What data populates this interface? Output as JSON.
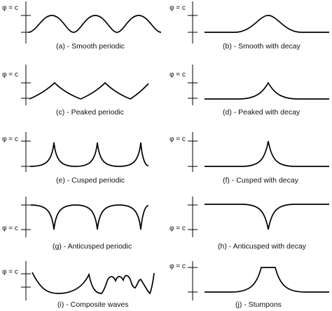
{
  "axis_label": "φ = c",
  "panels": [
    {
      "id": "a",
      "caption": "(a) - Smooth periodic"
    },
    {
      "id": "b",
      "caption": "(b) - Smooth with decay"
    },
    {
      "id": "c",
      "caption": "(c) - Peaked periodic"
    },
    {
      "id": "d",
      "caption": "(d) - Peaked with decay"
    },
    {
      "id": "e",
      "caption": "(e) - Cusped periodic"
    },
    {
      "id": "f",
      "caption": "(f) - Cusped with decay"
    },
    {
      "id": "g",
      "caption": "(g) - Anticusped periodic"
    },
    {
      "id": "h",
      "caption": "(h) - Anticusped with decay"
    },
    {
      "id": "i",
      "caption": "(i) - Composite waves"
    },
    {
      "id": "j",
      "caption": "(j) - Stumpons"
    }
  ],
  "colors": {
    "line": "#000000",
    "text": "#111111"
  }
}
